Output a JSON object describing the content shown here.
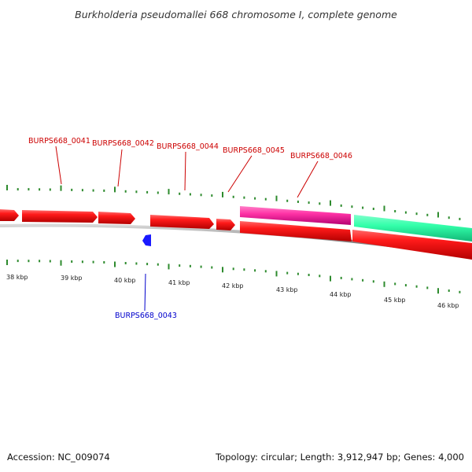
{
  "title": "Burkholderia pseudomallei 668 chromosome I, complete genome",
  "footer": {
    "accession": "Accession: NC_009074",
    "summary": "Topology: circular; Length: 3,912,947 bp; Genes: 4,000"
  },
  "ruler": {
    "labels": [
      "38 kbp",
      "39 kbp",
      "40 kbp",
      "41 kbp",
      "42 kbp",
      "43 kbp",
      "44 kbp",
      "45 kbp",
      "46 kbp"
    ]
  },
  "genes": [
    {
      "label": "BURPS668_0041",
      "strand": "forward",
      "color": "#cc0000"
    },
    {
      "label": "BURPS668_0042",
      "strand": "forward",
      "color": "#cc0000"
    },
    {
      "label": "BURPS668_0043",
      "strand": "reverse",
      "color": "#0000cc"
    },
    {
      "label": "BURPS668_0044",
      "strand": "forward",
      "color": "#cc0000"
    },
    {
      "label": "BURPS668_0045",
      "strand": "forward",
      "color": "#cc0000"
    },
    {
      "label": "BURPS668_0046",
      "strand": "forward",
      "color": "#cc0000"
    }
  ],
  "colors": {
    "cds": "#ff1a1a",
    "cds_dark": "#b30000",
    "pseudo_pink": "#ff33a6",
    "rna_green": "#33ffaa",
    "tick": "#2e8b2e",
    "backbone": "#888888",
    "reverse_cds": "#1a1aff"
  }
}
